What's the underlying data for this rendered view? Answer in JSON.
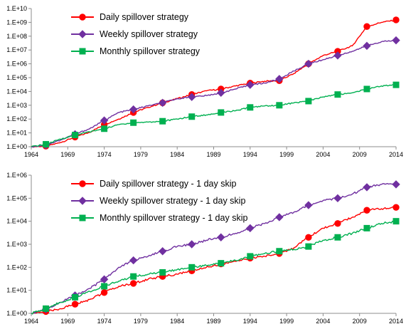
{
  "chart_data": [
    {
      "type": "line",
      "y_scale": "log10",
      "x_ticks": [
        "1964",
        "1969",
        "1974",
        "1979",
        "1984",
        "1989",
        "1994",
        "1999",
        "2004",
        "2009",
        "2014"
      ],
      "y_ticks": [
        "1.E+00",
        "1.E+01",
        "1.E+02",
        "1.E+03",
        "1.E+04",
        "1.E+05",
        "1.E+06",
        "1.E+07",
        "1.E+08",
        "1.E+09",
        "1.E+10"
      ],
      "xlim": [
        1964,
        2014
      ],
      "ylim_log10": [
        0,
        10
      ],
      "grid": false,
      "legend_position": "top-left",
      "series": [
        {
          "name": "Daily spillover strategy",
          "color": "#ff0000",
          "marker": "circle",
          "x": [
            1964,
            1966,
            1968,
            1970,
            1972,
            1974,
            1976,
            1978,
            1980,
            1982,
            1984,
            1986,
            1988,
            1990,
            1992,
            1994,
            1996,
            1998,
            2000,
            2002,
            2004,
            2006,
            2008,
            2010,
            2012,
            2014
          ],
          "y": [
            1.0,
            1.1,
            2.0,
            5.0,
            11,
            40,
            100,
            300,
            700,
            1500,
            3000,
            6000,
            11000,
            15000,
            25000,
            40000,
            55000,
            60000,
            200000,
            1000000,
            4000000,
            8000000,
            20000000,
            500000000,
            1000000000,
            1500000000
          ]
        },
        {
          "name": "Weekly spillover strategy",
          "color": "#7030a0",
          "marker": "diamond",
          "x": [
            1964,
            1966,
            1968,
            1970,
            1972,
            1974,
            1976,
            1978,
            1980,
            1982,
            1984,
            1986,
            1988,
            1990,
            1992,
            1994,
            1996,
            1998,
            2000,
            2002,
            2004,
            2006,
            2008,
            2010,
            2012,
            2014
          ],
          "y": [
            1.0,
            1.3,
            3.0,
            8.0,
            20,
            80,
            300,
            500,
            900,
            1500,
            3000,
            4000,
            5000,
            8000,
            15000,
            30000,
            40000,
            80000,
            300000,
            1000000,
            2000000,
            4000000,
            8000000,
            20000000,
            40000000,
            50000000
          ]
        },
        {
          "name": "Monthly spillover strategy",
          "color": "#00b050",
          "marker": "square",
          "x": [
            1964,
            1966,
            1968,
            1970,
            1972,
            1974,
            1976,
            1978,
            1980,
            1982,
            1984,
            1986,
            1988,
            1990,
            1992,
            1994,
            1996,
            1998,
            2000,
            2002,
            2004,
            2006,
            2008,
            2010,
            2012,
            2014
          ],
          "y": [
            1.0,
            1.5,
            3.5,
            7.0,
            12,
            20,
            40,
            55,
            60,
            70,
            100,
            150,
            200,
            300,
            400,
            700,
            900,
            1000,
            1500,
            2000,
            4000,
            6000,
            8000,
            15000,
            25000,
            30000
          ]
        }
      ]
    },
    {
      "type": "line",
      "y_scale": "log10",
      "x_ticks": [
        "1964",
        "1969",
        "1974",
        "1979",
        "1984",
        "1989",
        "1994",
        "1999",
        "2004",
        "2009",
        "2014"
      ],
      "y_ticks": [
        "1.E+00",
        "1.E+01",
        "1.E+02",
        "1.E+03",
        "1.E+04",
        "1.E+05",
        "1.E+06"
      ],
      "xlim": [
        1964,
        2014
      ],
      "ylim_log10": [
        0,
        6
      ],
      "grid": false,
      "legend_position": "top-left",
      "series": [
        {
          "name": "Daily spillover strategy - 1 day skip",
          "color": "#ff0000",
          "marker": "circle",
          "x": [
            1964,
            1966,
            1968,
            1970,
            1972,
            1974,
            1976,
            1978,
            1980,
            1982,
            1984,
            1986,
            1988,
            1990,
            1992,
            1994,
            1996,
            1998,
            2000,
            2002,
            2004,
            2006,
            2008,
            2010,
            2012,
            2014
          ],
          "y": [
            1.0,
            1.2,
            1.6,
            2.5,
            4.0,
            8.0,
            15,
            20,
            30,
            40,
            50,
            70,
            100,
            140,
            180,
            250,
            300,
            400,
            700,
            2000,
            5000,
            8000,
            15000,
            30000,
            35000,
            40000
          ]
        },
        {
          "name": "Weekly spillover strategy - 1 day skip",
          "color": "#7030a0",
          "marker": "diamond",
          "x": [
            1964,
            1966,
            1968,
            1970,
            1972,
            1974,
            1976,
            1978,
            1980,
            1982,
            1984,
            1986,
            1988,
            1990,
            1992,
            1994,
            1996,
            1998,
            2000,
            2002,
            2004,
            2006,
            2008,
            2010,
            2012,
            2014
          ],
          "y": [
            1.0,
            1.5,
            3.0,
            6.0,
            12,
            30,
            100,
            200,
            300,
            500,
            800,
            1000,
            1500,
            2000,
            3000,
            5000,
            8000,
            15000,
            25000,
            50000,
            80000,
            100000,
            150000,
            300000,
            400000,
            400000
          ]
        },
        {
          "name": "Monthly spillover strategy - 1 day skip",
          "color": "#00b050",
          "marker": "square",
          "x": [
            1964,
            1966,
            1968,
            1970,
            1972,
            1974,
            1976,
            1978,
            1980,
            1982,
            1984,
            1986,
            1988,
            1990,
            1992,
            1994,
            1996,
            1998,
            2000,
            2002,
            2004,
            2006,
            2008,
            2010,
            2012,
            2014
          ],
          "y": [
            1.0,
            1.6,
            3.0,
            5.0,
            9.0,
            15,
            25,
            40,
            50,
            60,
            80,
            100,
            120,
            150,
            200,
            300,
            400,
            500,
            600,
            800,
            1500,
            2000,
            3000,
            5000,
            8000,
            10000
          ]
        }
      ]
    }
  ]
}
